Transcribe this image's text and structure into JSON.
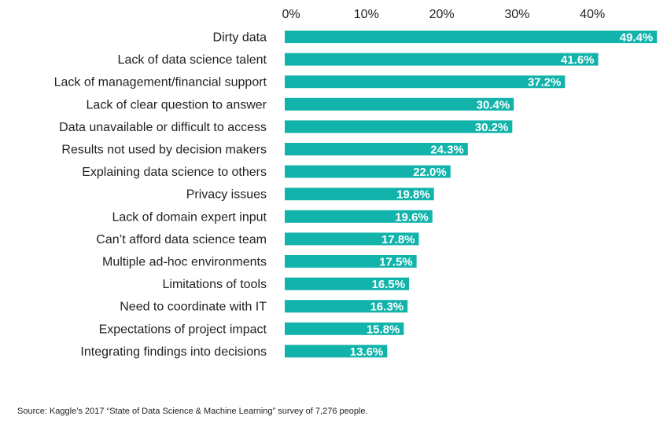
{
  "chart_data": {
    "type": "bar",
    "orientation": "horizontal",
    "title": "",
    "xlabel": "",
    "ylabel": "",
    "xlim": [
      0,
      50
    ],
    "x_tick_values": [
      0,
      10,
      20,
      30,
      40
    ],
    "x_tick_labels": [
      "0%",
      "10%",
      "20%",
      "30%",
      "40%"
    ],
    "x_axis_position": "top",
    "grid": false,
    "bar_color": "#12b3aa",
    "categories": [
      "Dirty data",
      "Lack of data science talent",
      "Lack of management/financial support",
      "Lack of clear question to answer",
      "Data unavailable or difficult to access",
      "Results not used by decision makers",
      "Explaining data science to others",
      "Privacy issues",
      "Lack of domain expert input",
      "Can’t afford data science team",
      "Multiple ad-hoc environments",
      "Limitations of tools",
      "Need to coordinate with IT",
      "Expectations of project impact",
      "Integrating findings into decisions"
    ],
    "values": [
      49.4,
      41.6,
      37.2,
      30.4,
      30.2,
      24.3,
      22.0,
      19.8,
      19.6,
      17.8,
      17.5,
      16.5,
      16.3,
      15.8,
      13.6
    ],
    "data_labels": [
      "49.4%",
      "41.6%",
      "37.2%",
      "30.4%",
      "30.2%",
      "24.3%",
      "22.0%",
      "19.8%",
      "19.6%",
      "17.8%",
      "17.5%",
      "16.5%",
      "16.3%",
      "15.8%",
      "13.6%"
    ]
  },
  "source": "Source: Kaggle’s 2017 “State of Data Science & Machine Learning” survey of 7,276 people."
}
